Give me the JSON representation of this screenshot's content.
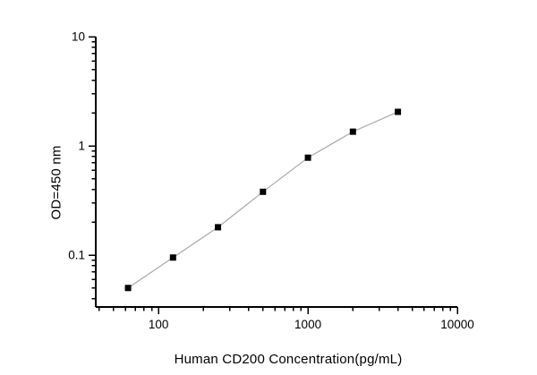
{
  "figure": {
    "background_color": "#ffffff"
  },
  "chart_data": {
    "type": "scatter",
    "title": "",
    "xlabel": "Human CD200 Concentration(pg/mL)",
    "ylabel": "OD=450 nm",
    "x_scale": "log",
    "y_scale": "log",
    "xlim": [
      38,
      10000
    ],
    "ylim": [
      0.0335,
      10
    ],
    "x": [
      62.5,
      125,
      250,
      500,
      1000,
      2000,
      4000
    ],
    "y": [
      0.05,
      0.095,
      0.18,
      0.38,
      0.78,
      1.35,
      2.05
    ],
    "x_major_ticks": [
      100,
      1000,
      10000
    ],
    "x_tick_labels": [
      "100",
      "1000",
      "10000"
    ],
    "y_major_ticks": [
      10,
      1,
      0.1
    ],
    "y_tick_labels": [
      "10",
      "1",
      "0.1"
    ],
    "grid": false,
    "legend": null,
    "marker": "filled-square",
    "marker_color": "#000000",
    "line_color": "#a8a8a8",
    "axis_color": "#000000",
    "tick_direction": "out"
  }
}
